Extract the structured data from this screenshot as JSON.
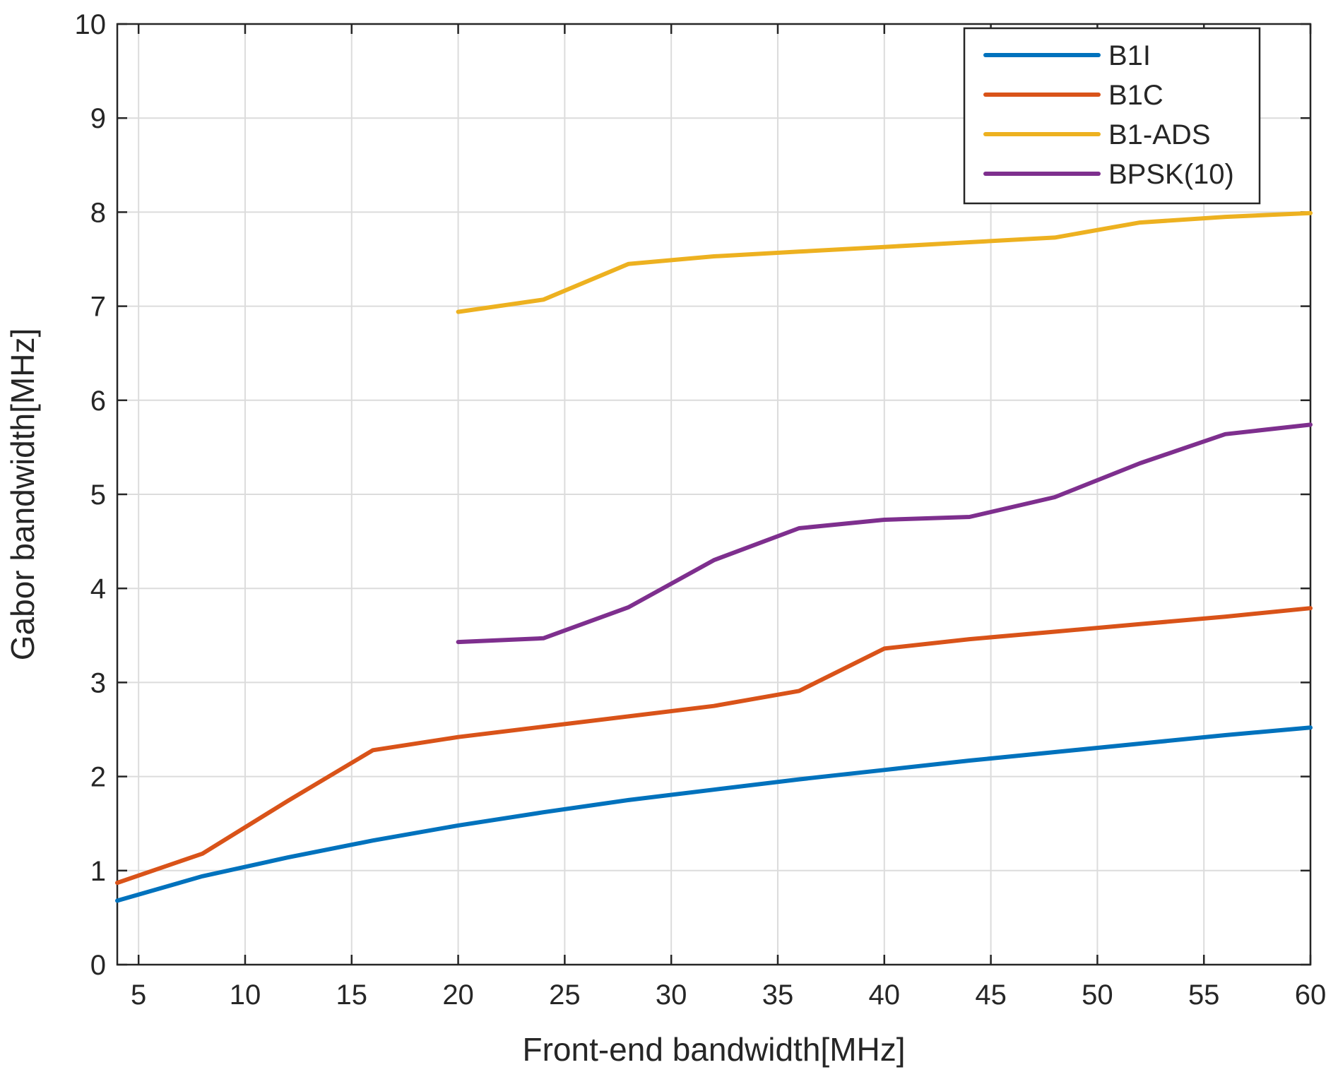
{
  "chart_data": {
    "type": "line",
    "title": "",
    "xlabel": "Front-end bandwidth[MHz]",
    "ylabel": "Gabor bandwidth[MHz]",
    "xlim": [
      4,
      60
    ],
    "ylim": [
      0,
      10
    ],
    "xticks": [
      5,
      10,
      15,
      20,
      25,
      30,
      35,
      40,
      45,
      50,
      55,
      60
    ],
    "yticks": [
      0,
      1,
      2,
      3,
      4,
      5,
      6,
      7,
      8,
      9,
      10
    ],
    "grid": true,
    "legend_position": "top-right",
    "series": [
      {
        "name": "B1I",
        "color": "#0072BD",
        "x": [
          4,
          8,
          12,
          16,
          20,
          24,
          28,
          32,
          36,
          40,
          44,
          48,
          52,
          56,
          60
        ],
        "values": [
          0.68,
          0.94,
          1.14,
          1.32,
          1.48,
          1.62,
          1.75,
          1.86,
          1.97,
          2.07,
          2.17,
          2.26,
          2.35,
          2.44,
          2.52
        ]
      },
      {
        "name": "B1C",
        "color": "#D95319",
        "x": [
          4,
          8,
          12,
          16,
          20,
          24,
          28,
          32,
          36,
          40,
          44,
          48,
          52,
          56,
          60
        ],
        "values": [
          0.87,
          1.18,
          1.74,
          2.28,
          2.42,
          2.53,
          2.64,
          2.75,
          2.91,
          3.36,
          3.46,
          3.54,
          3.62,
          3.7,
          3.79
        ]
      },
      {
        "name": "B1-ADS",
        "color": "#EDB120",
        "x": [
          20,
          24,
          28,
          32,
          36,
          40,
          44,
          48,
          52,
          56,
          60
        ],
        "values": [
          6.94,
          7.07,
          7.45,
          7.53,
          7.58,
          7.63,
          7.68,
          7.73,
          7.89,
          7.95,
          7.99
        ]
      },
      {
        "name": "BPSK(10)",
        "color": "#7E2F8E",
        "x": [
          20,
          24,
          28,
          32,
          36,
          40,
          44,
          48,
          52,
          56,
          60
        ],
        "values": [
          3.43,
          3.47,
          3.8,
          4.3,
          4.64,
          4.73,
          4.76,
          4.97,
          5.33,
          5.64,
          5.74
        ]
      }
    ]
  }
}
